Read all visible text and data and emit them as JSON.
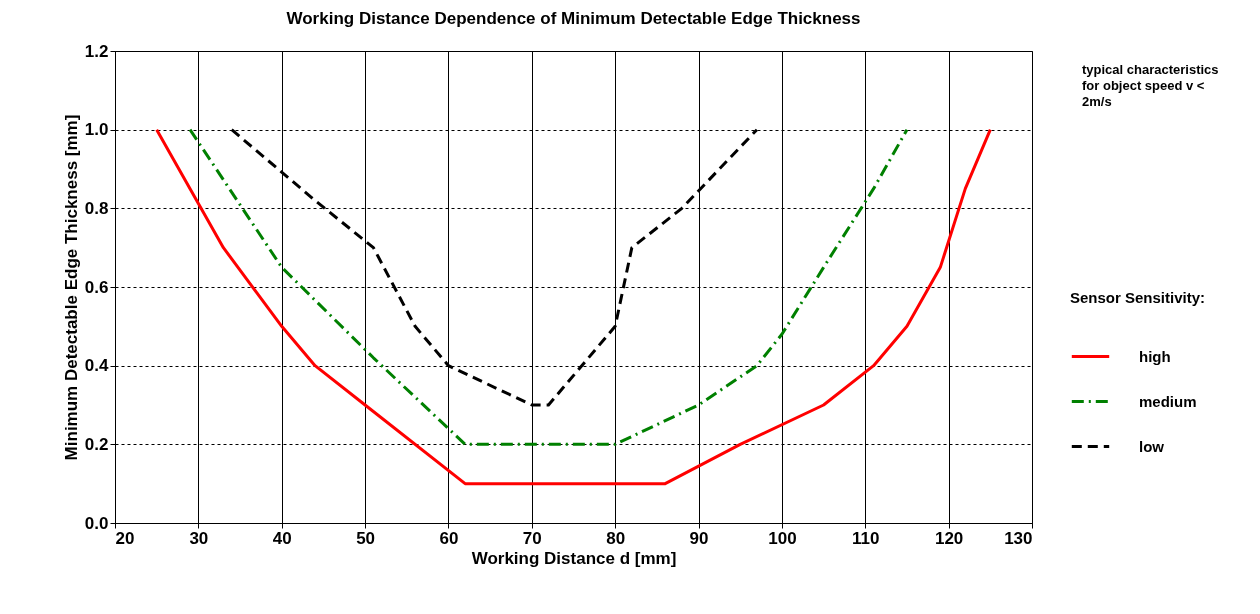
{
  "chart_data": {
    "type": "line",
    "title": "Working Distance Dependence of Minimum Detectable Edge Thickness",
    "xlabel": "Working Distance d  [mm]",
    "ylabel": "Minimum Detectable Edge Thickness  [mm]",
    "legend_title": "Sensor Sensitivity:",
    "annotations": [
      "typical characteristics for object speed v < 2m/s"
    ],
    "xlim": [
      20,
      130
    ],
    "xticks": [
      20,
      30,
      40,
      50,
      60,
      70,
      80,
      90,
      100,
      110,
      120,
      130
    ],
    "ylim": [
      0,
      1.2
    ],
    "yticks": [
      {
        "value": 0,
        "label": "0.0"
      },
      {
        "value": 0.2,
        "label": "0.2"
      },
      {
        "value": 0.4,
        "label": "0.4"
      },
      {
        "value": 0.6,
        "label": "0.6"
      },
      {
        "value": 0.8,
        "label": "0.8"
      },
      {
        "value": 1,
        "label": "1.0"
      },
      {
        "value": 1.2,
        "label": "1.2"
      }
    ],
    "grid": true,
    "legend": "right",
    "marker": "none",
    "series": [
      {
        "name": "high",
        "color": "#ff0000",
        "line_style": "solid",
        "x": [
          25,
          33,
          40,
          44,
          50,
          62,
          86,
          95,
          105,
          111,
          115,
          119,
          122,
          125
        ],
        "values": [
          1.0,
          0.7,
          0.5,
          0.4,
          0.3,
          0.1,
          0.1,
          0.2,
          0.3,
          0.4,
          0.5,
          0.65,
          0.85,
          1.0
        ]
      },
      {
        "name": "medium",
        "color": "#008000",
        "line_style": "dashdot",
        "x": [
          29,
          40,
          51,
          62,
          80,
          90,
          97,
          100,
          105,
          111,
          115
        ],
        "values": [
          1.0,
          0.65,
          0.42,
          0.2,
          0.2,
          0.3,
          0.4,
          0.48,
          0.65,
          0.85,
          1.0
        ]
      },
      {
        "name": "low",
        "color": "#000000",
        "line_style": "dashed",
        "x": [
          34,
          44,
          51,
          56,
          60,
          70,
          72,
          80,
          82,
          88,
          97
        ],
        "values": [
          1.0,
          0.82,
          0.7,
          0.5,
          0.4,
          0.3,
          0.3,
          0.5,
          0.7,
          0.8,
          1.0
        ]
      }
    ]
  }
}
